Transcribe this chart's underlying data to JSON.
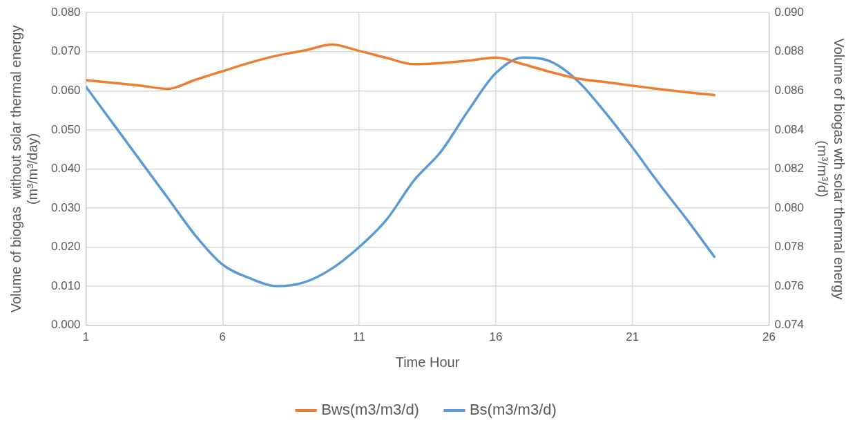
{
  "chart_data": {
    "type": "line",
    "xlabel": "Time Hour",
    "ylabel": "Volume of biogas  without solar thermal energy\n(m³/m³/day)",
    "y2label": "Volume of biogas wth solar thermal energy\n(m³/m³/d)",
    "x": [
      1,
      2,
      3,
      4,
      5,
      6,
      7,
      8,
      9,
      10,
      11,
      12,
      13,
      14,
      15,
      16,
      17,
      18,
      19,
      20,
      21,
      22,
      23,
      24
    ],
    "xlim": [
      1,
      26
    ],
    "xticks": [
      1,
      6,
      11,
      16,
      21,
      26
    ],
    "ylim": [
      0,
      0.08
    ],
    "yticks": [
      {
        "value": 0,
        "label": "0.000"
      },
      {
        "value": 0.01,
        "label": "0.010"
      },
      {
        "value": 0.02,
        "label": "0.020"
      },
      {
        "value": 0.03,
        "label": "0.030"
      },
      {
        "value": 0.04,
        "label": "0.040"
      },
      {
        "value": 0.05,
        "label": "0.050"
      },
      {
        "value": 0.06,
        "label": "0.060"
      },
      {
        "value": 0.07,
        "label": "0.070"
      },
      {
        "value": 0.08,
        "label": "0.080"
      }
    ],
    "y2lim": [
      0.074,
      0.09
    ],
    "y2ticks": [
      {
        "value": 0.074,
        "label": "0.074"
      },
      {
        "value": 0.076,
        "label": "0.076"
      },
      {
        "value": 0.078,
        "label": "0.078"
      },
      {
        "value": 0.08,
        "label": "0.080"
      },
      {
        "value": 0.082,
        "label": "0.082"
      },
      {
        "value": 0.084,
        "label": "0.084"
      },
      {
        "value": 0.086,
        "label": "0.086"
      },
      {
        "value": 0.088,
        "label": "0.088"
      },
      {
        "value": 0.09,
        "label": "0.090"
      }
    ],
    "grid": true,
    "legend": "bottom",
    "marker": "none",
    "line_style": "solid",
    "series": [
      {
        "name": "Bws(m3/m3/d)",
        "color": "#ed7d31",
        "values": [
          0.0627,
          0.062,
          0.0613,
          0.0605,
          0.0628,
          0.065,
          0.0672,
          0.069,
          0.0703,
          0.0718,
          0.0702,
          0.0684,
          0.0668,
          0.0671,
          0.0677,
          0.0685,
          0.0668,
          0.0648,
          0.0631,
          0.0622,
          0.0613,
          0.0604,
          0.0596,
          0.0589
        ]
      },
      {
        "name": "Bs(m3/m3/d)",
        "color": "#5b9bd5",
        "axis": "y2",
        "values": [
          0.0862,
          0.0843,
          0.0824,
          0.0805,
          0.0786,
          0.0771,
          0.0764,
          0.076,
          0.0762,
          0.0769,
          0.078,
          0.0794,
          0.0814,
          0.0829,
          0.085,
          0.0869,
          0.0877,
          0.0875,
          0.0865,
          0.0849,
          0.0831,
          0.0812,
          0.0794,
          0.0775
        ]
      }
    ]
  }
}
